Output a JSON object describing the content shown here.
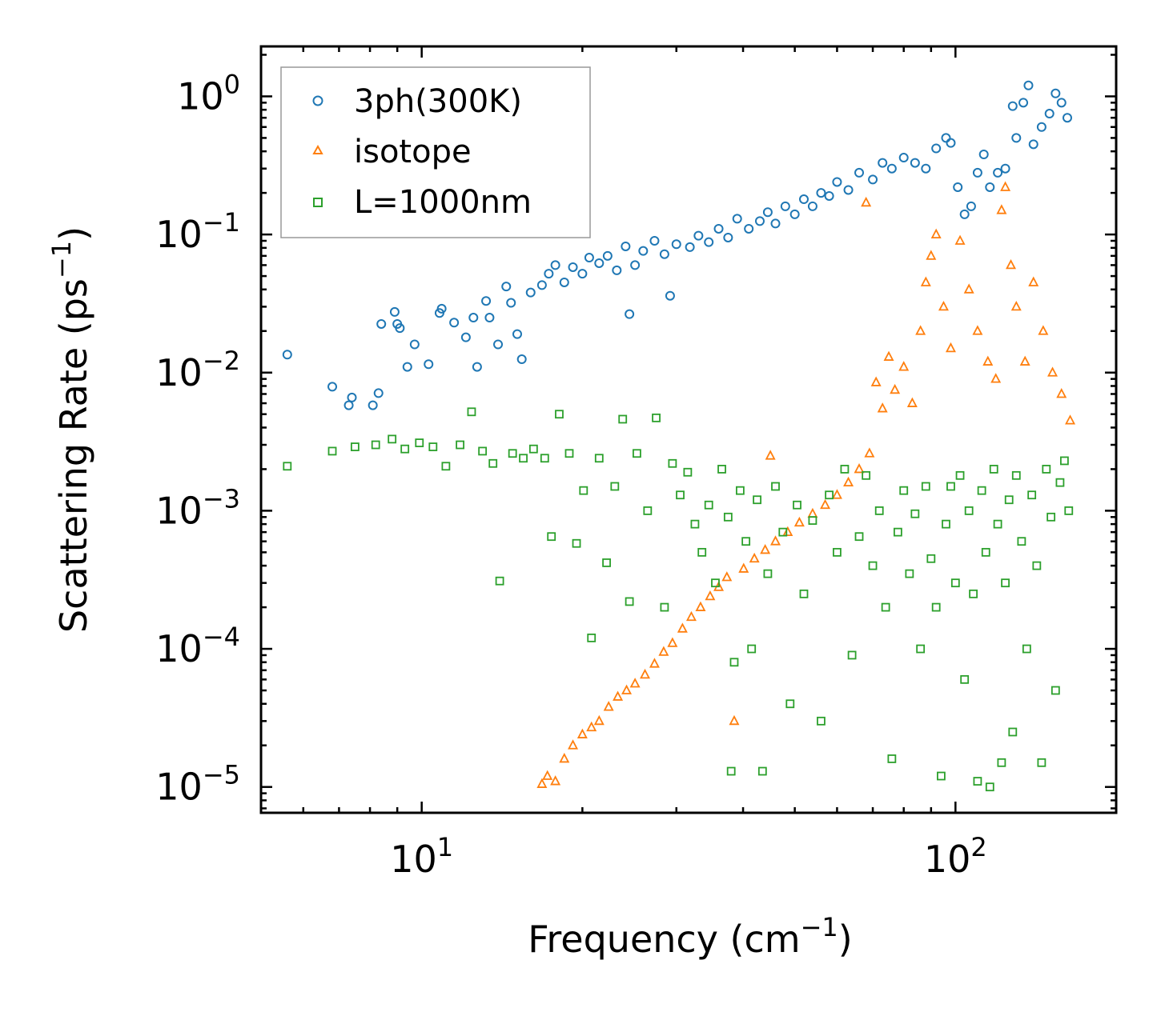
{
  "chart_data": {
    "type": "scatter",
    "xscale": "log",
    "yscale": "log",
    "xlim": [
      5,
      200
    ],
    "ylim": [
      6.5e-06,
      2.3
    ],
    "xlabel": "Frequency (cm",
    "xlabel_unit_sup": "−1",
    "xlabel_end": ")",
    "ylabel": "Scattering Rate (ps",
    "ylabel_unit_sup": "−1",
    "ylabel_end": ")",
    "x_ticks": [
      {
        "value": 10,
        "base": "10",
        "exp": "1"
      },
      {
        "value": 100,
        "base": "10",
        "exp": "2"
      }
    ],
    "y_ticks": [
      {
        "value": 1,
        "base": "10",
        "exp": "0"
      },
      {
        "value": 0.1,
        "base": "10",
        "exp": "−1"
      },
      {
        "value": 0.01,
        "base": "10",
        "exp": "−2"
      },
      {
        "value": 0.001,
        "base": "10",
        "exp": "−3"
      },
      {
        "value": 0.0001,
        "base": "10",
        "exp": "−4"
      },
      {
        "value": 1e-05,
        "base": "10",
        "exp": "−5"
      }
    ],
    "legend_position": "top-left",
    "series": [
      {
        "name": "3ph(300K)",
        "marker": "circle",
        "color": "#1f77b4",
        "points": [
          [
            5.6,
            0.0135
          ],
          [
            6.8,
            0.0079
          ],
          [
            7.3,
            0.0058
          ],
          [
            7.4,
            0.0066
          ],
          [
            8.1,
            0.0058
          ],
          [
            8.3,
            0.0071
          ],
          [
            8.4,
            0.0225
          ],
          [
            8.9,
            0.0275
          ],
          [
            9.0,
            0.0225
          ],
          [
            9.1,
            0.021
          ],
          [
            9.4,
            0.011
          ],
          [
            9.7,
            0.016
          ],
          [
            10.3,
            0.0115
          ],
          [
            10.8,
            0.027
          ],
          [
            10.9,
            0.029
          ],
          [
            11.5,
            0.023
          ],
          [
            12.1,
            0.018
          ],
          [
            12.5,
            0.025
          ],
          [
            12.7,
            0.011
          ],
          [
            13.2,
            0.033
          ],
          [
            13.4,
            0.025
          ],
          [
            13.9,
            0.016
          ],
          [
            14.4,
            0.042
          ],
          [
            14.7,
            0.032
          ],
          [
            15.1,
            0.019
          ],
          [
            15.4,
            0.0125
          ],
          [
            16.0,
            0.038
          ],
          [
            16.8,
            0.043
          ],
          [
            17.3,
            0.052
          ],
          [
            17.8,
            0.06
          ],
          [
            18.5,
            0.045
          ],
          [
            19.2,
            0.058
          ],
          [
            20.0,
            0.052
          ],
          [
            20.6,
            0.068
          ],
          [
            21.5,
            0.062
          ],
          [
            22.3,
            0.07
          ],
          [
            23.2,
            0.055
          ],
          [
            24.1,
            0.082
          ],
          [
            24.5,
            0.0265
          ],
          [
            25.1,
            0.06
          ],
          [
            26.0,
            0.076
          ],
          [
            27.3,
            0.09
          ],
          [
            28.5,
            0.072
          ],
          [
            29.2,
            0.036
          ],
          [
            30.0,
            0.085
          ],
          [
            31.8,
            0.081
          ],
          [
            33.0,
            0.098
          ],
          [
            34.5,
            0.088
          ],
          [
            36.0,
            0.11
          ],
          [
            37.5,
            0.095
          ],
          [
            39.0,
            0.13
          ],
          [
            41.0,
            0.11
          ],
          [
            43.0,
            0.125
          ],
          [
            44.5,
            0.145
          ],
          [
            46.0,
            0.12
          ],
          [
            48.0,
            0.16
          ],
          [
            50.0,
            0.14
          ],
          [
            52.0,
            0.18
          ],
          [
            54.0,
            0.16
          ],
          [
            56.0,
            0.2
          ],
          [
            58.0,
            0.19
          ],
          [
            60.0,
            0.24
          ],
          [
            63.0,
            0.21
          ],
          [
            66.0,
            0.28
          ],
          [
            70.0,
            0.25
          ],
          [
            73.0,
            0.33
          ],
          [
            76.0,
            0.3
          ],
          [
            80.0,
            0.36
          ],
          [
            84.0,
            0.33
          ],
          [
            88.0,
            0.3
          ],
          [
            92.0,
            0.42
          ],
          [
            96.0,
            0.5
          ],
          [
            98.0,
            0.46
          ],
          [
            101.0,
            0.22
          ],
          [
            104.0,
            0.14
          ],
          [
            107.0,
            0.16
          ],
          [
            110.0,
            0.28
          ],
          [
            113.0,
            0.38
          ],
          [
            116.0,
            0.22
          ],
          [
            120.0,
            0.28
          ],
          [
            124.0,
            0.3
          ],
          [
            128.0,
            0.85
          ],
          [
            130.0,
            0.5
          ],
          [
            134.0,
            0.9
          ],
          [
            137.0,
            1.2
          ],
          [
            140.0,
            0.45
          ],
          [
            145.0,
            0.6
          ],
          [
            150.0,
            0.75
          ],
          [
            154.0,
            1.05
          ],
          [
            158.0,
            0.9
          ],
          [
            162.0,
            0.7
          ]
        ]
      },
      {
        "name": "isotope",
        "marker": "triangle",
        "color": "#ff7f0e",
        "points": [
          [
            16.8,
            1.05e-05
          ],
          [
            17.2,
            1.2e-05
          ],
          [
            17.8,
            1.1e-05
          ],
          [
            18.5,
            1.6e-05
          ],
          [
            19.2,
            2e-05
          ],
          [
            20.0,
            2.4e-05
          ],
          [
            20.8,
            2.7e-05
          ],
          [
            21.5,
            3e-05
          ],
          [
            22.4,
            3.8e-05
          ],
          [
            23.3,
            4.5e-05
          ],
          [
            24.2,
            5e-05
          ],
          [
            25.1,
            5.6e-05
          ],
          [
            26.2,
            6.5e-05
          ],
          [
            27.3,
            7.8e-05
          ],
          [
            28.4,
            9.5e-05
          ],
          [
            29.5,
            0.00011
          ],
          [
            30.8,
            0.00014
          ],
          [
            32.0,
            0.00017
          ],
          [
            33.3,
            0.0002
          ],
          [
            34.7,
            0.00024
          ],
          [
            36.0,
            0.00028
          ],
          [
            37.3,
            0.00033
          ],
          [
            38.5,
            3e-05
          ],
          [
            40.1,
            0.00038
          ],
          [
            42.0,
            0.00045
          ],
          [
            44.0,
            0.00052
          ],
          [
            46.0,
            0.0006
          ],
          [
            48.5,
            0.0007
          ],
          [
            51.0,
            0.00082
          ],
          [
            54.0,
            0.00095
          ],
          [
            57.0,
            0.0011
          ],
          [
            60.0,
            0.0013
          ],
          [
            63.0,
            0.0016
          ],
          [
            66.0,
            0.002
          ],
          [
            69.0,
            0.0026
          ],
          [
            71.0,
            0.0085
          ],
          [
            73.0,
            0.0055
          ],
          [
            75.0,
            0.013
          ],
          [
            77.0,
            0.0075
          ],
          [
            80.0,
            0.011
          ],
          [
            83.0,
            0.006
          ],
          [
            86.0,
            0.02
          ],
          [
            88.0,
            0.045
          ],
          [
            90.0,
            0.07
          ],
          [
            92.0,
            0.1
          ],
          [
            95.0,
            0.03
          ],
          [
            98.0,
            0.015
          ],
          [
            102.0,
            0.09
          ],
          [
            106.0,
            0.04
          ],
          [
            110.0,
            0.02
          ],
          [
            115.0,
            0.012
          ],
          [
            119.0,
            0.009
          ],
          [
            122.0,
            0.15
          ],
          [
            124.0,
            0.22
          ],
          [
            127.0,
            0.06
          ],
          [
            130.0,
            0.03
          ],
          [
            135.0,
            0.012
          ],
          [
            140.0,
            0.045
          ],
          [
            146.0,
            0.02
          ],
          [
            152.0,
            0.01
          ],
          [
            158.0,
            0.007
          ],
          [
            164.0,
            0.0045
          ],
          [
            68.0,
            0.17
          ],
          [
            45.0,
            0.0025
          ]
        ]
      },
      {
        "name": "L=1000nm",
        "marker": "square",
        "color": "#2ca02c",
        "points": [
          [
            5.6,
            0.0021
          ],
          [
            6.8,
            0.0027
          ],
          [
            7.5,
            0.0029
          ],
          [
            8.2,
            0.003
          ],
          [
            8.8,
            0.0033
          ],
          [
            9.3,
            0.0028
          ],
          [
            9.9,
            0.0031
          ],
          [
            10.5,
            0.0029
          ],
          [
            11.1,
            0.0021
          ],
          [
            11.8,
            0.003
          ],
          [
            12.4,
            0.0052
          ],
          [
            13.0,
            0.0027
          ],
          [
            13.6,
            0.0022
          ],
          [
            14.0,
            0.00031
          ],
          [
            14.8,
            0.0026
          ],
          [
            15.5,
            0.0024
          ],
          [
            16.2,
            0.0028
          ],
          [
            17.0,
            0.0024
          ],
          [
            17.5,
            0.00065
          ],
          [
            18.1,
            0.005
          ],
          [
            18.9,
            0.0026
          ],
          [
            19.5,
            0.00058
          ],
          [
            20.1,
            0.0014
          ],
          [
            20.8,
            0.00012
          ],
          [
            21.5,
            0.0024
          ],
          [
            22.2,
            0.00042
          ],
          [
            23.0,
            0.0015
          ],
          [
            23.8,
            0.0046
          ],
          [
            24.5,
            0.00022
          ],
          [
            25.3,
            0.0026
          ],
          [
            26.5,
            0.001
          ],
          [
            27.5,
            0.0047
          ],
          [
            28.5,
            0.0002
          ],
          [
            29.5,
            0.0022
          ],
          [
            30.5,
            0.0013
          ],
          [
            31.5,
            0.0019
          ],
          [
            32.5,
            0.0008
          ],
          [
            33.5,
            0.0005
          ],
          [
            34.5,
            0.0011
          ],
          [
            35.5,
            0.0003
          ],
          [
            36.5,
            0.002
          ],
          [
            37.5,
            0.0009
          ],
          [
            38.0,
            1.3e-05
          ],
          [
            38.5,
            8e-05
          ],
          [
            39.5,
            0.0014
          ],
          [
            40.5,
            0.0006
          ],
          [
            41.5,
            0.0001
          ],
          [
            42.5,
            0.0012
          ],
          [
            43.5,
            1.3e-05
          ],
          [
            44.5,
            0.00035
          ],
          [
            46.0,
            0.0015
          ],
          [
            47.5,
            0.0007
          ],
          [
            49.0,
            4e-05
          ],
          [
            50.5,
            0.0011
          ],
          [
            52.0,
            0.00025
          ],
          [
            54.0,
            0.00085
          ],
          [
            56.0,
            3e-05
          ],
          [
            58.0,
            0.0013
          ],
          [
            60.0,
            0.0005
          ],
          [
            62.0,
            0.002
          ],
          [
            64.0,
            9e-05
          ],
          [
            66.0,
            0.00065
          ],
          [
            68.0,
            0.0018
          ],
          [
            70.0,
            0.0004
          ],
          [
            72.0,
            0.001
          ],
          [
            74.0,
            0.0002
          ],
          [
            76.0,
            1.6e-05
          ],
          [
            78.0,
            0.0007
          ],
          [
            80.0,
            0.0014
          ],
          [
            82.0,
            0.00035
          ],
          [
            84.0,
            0.00095
          ],
          [
            86.0,
            0.0001
          ],
          [
            88.0,
            0.0015
          ],
          [
            90.0,
            0.00045
          ],
          [
            92.0,
            0.0002
          ],
          [
            94.0,
            1.2e-05
          ],
          [
            96.0,
            0.0008
          ],
          [
            98.0,
            0.0015
          ],
          [
            100.0,
            0.0003
          ],
          [
            102.0,
            0.0018
          ],
          [
            104.0,
            6e-05
          ],
          [
            106.0,
            0.001
          ],
          [
            108.0,
            0.00025
          ],
          [
            110.0,
            1.1e-05
          ],
          [
            112.0,
            0.0014
          ],
          [
            114.0,
            0.0005
          ],
          [
            116.0,
            1e-05
          ],
          [
            118.0,
            0.002
          ],
          [
            120.0,
            0.0008
          ],
          [
            122.0,
            1.5e-05
          ],
          [
            124.0,
            0.0003
          ],
          [
            126.0,
            0.0012
          ],
          [
            128.0,
            2.5e-05
          ],
          [
            130.0,
            0.0018
          ],
          [
            133.0,
            0.0006
          ],
          [
            136.0,
            0.0001
          ],
          [
            139.0,
            0.0013
          ],
          [
            142.0,
            0.0004
          ],
          [
            145.0,
            1.5e-05
          ],
          [
            148.0,
            0.002
          ],
          [
            151.0,
            0.0009
          ],
          [
            154.0,
            5e-05
          ],
          [
            157.0,
            0.0016
          ],
          [
            160.0,
            0.0023
          ],
          [
            163.0,
            0.001
          ]
        ]
      }
    ]
  }
}
